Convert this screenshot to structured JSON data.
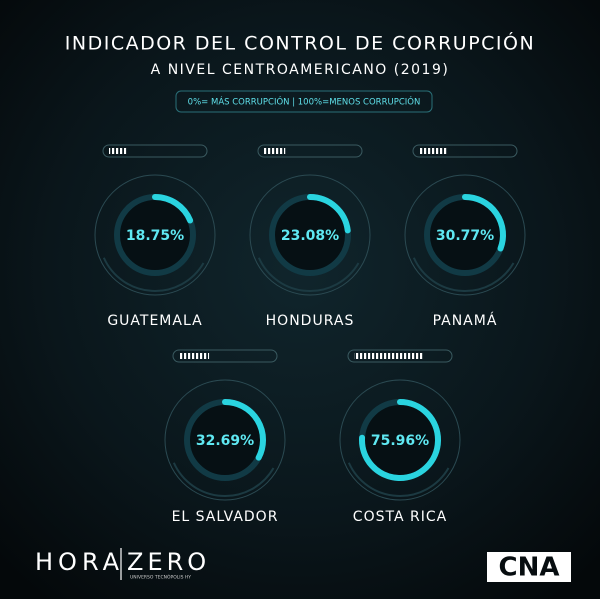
{
  "chart_data": {
    "type": "gauge",
    "title": "INDICADOR DEL CONTROL DE CORRUPCIÓN",
    "subtitle": "A NIVEL CENTROAMERICANO (2019)",
    "annotation": "0%= MÁS CORRUPCIÓN | 100%=MENOS CORRUPCIÓN",
    "categories": [
      "GUATEMALA",
      "HONDURAS",
      "PANAMÁ",
      "EL SALVADOR",
      "COSTA RICA"
    ],
    "values": [
      18.75,
      23.08,
      30.77,
      32.69,
      75.96
    ],
    "value_labels": [
      "18.75%",
      "23.08%",
      "30.77%",
      "32.69%",
      "75.96%"
    ],
    "ylim": [
      0,
      100
    ],
    "color": "#2ad4e0"
  },
  "branding": {
    "left": [
      "HORA",
      "ZERO"
    ],
    "left_tagline": "UNIVERSO TECNÓPOLIS HY",
    "right": "CNA"
  }
}
